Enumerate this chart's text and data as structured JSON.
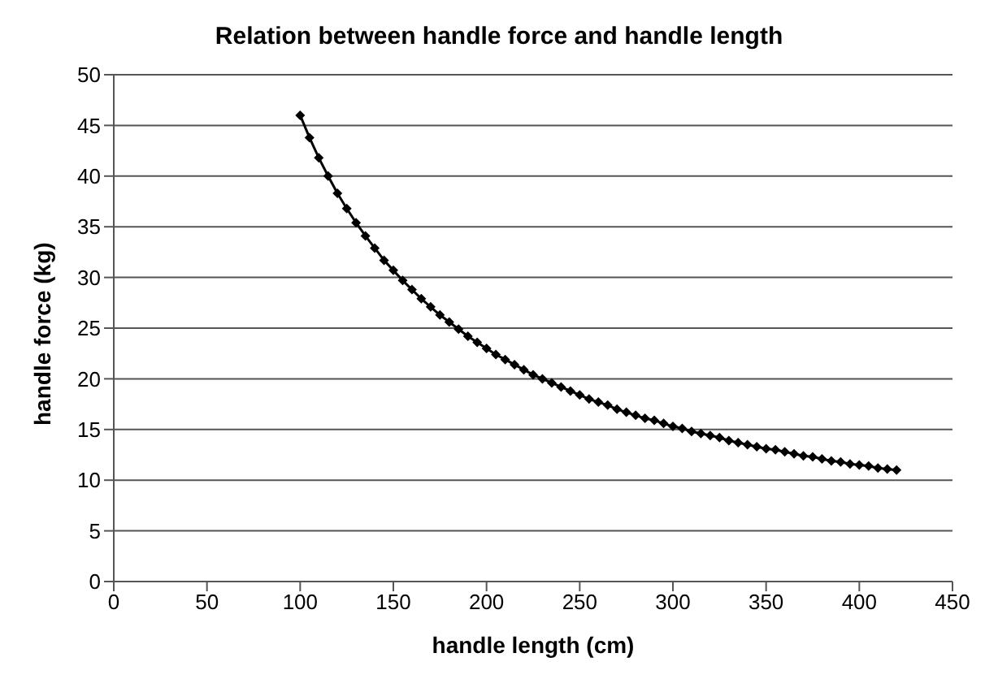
{
  "chart_data": {
    "type": "line",
    "title": "Relation between handle force and handle length",
    "xlabel": "handle length (cm)",
    "ylabel": "handle force (kg)",
    "x": [
      100,
      105,
      110,
      115,
      120,
      125,
      130,
      135,
      140,
      145,
      150,
      155,
      160,
      165,
      170,
      175,
      180,
      185,
      190,
      195,
      200,
      205,
      210,
      215,
      220,
      225,
      230,
      235,
      240,
      245,
      250,
      255,
      260,
      265,
      270,
      275,
      280,
      285,
      290,
      295,
      300,
      305,
      310,
      315,
      320,
      325,
      330,
      335,
      340,
      345,
      350,
      355,
      360,
      365,
      370,
      375,
      380,
      385,
      390,
      395,
      400,
      405,
      410,
      415,
      420
    ],
    "series": [
      {
        "color": "#000000",
        "values": [
          46.0,
          43.8,
          41.8,
          40.0,
          38.3,
          36.8,
          35.4,
          34.1,
          32.9,
          31.7,
          30.7,
          29.7,
          28.8,
          27.9,
          27.1,
          26.3,
          25.6,
          24.9,
          24.2,
          23.6,
          23.0,
          22.4,
          21.9,
          21.4,
          20.9,
          20.4,
          20.0,
          19.6,
          19.2,
          18.8,
          18.4,
          18.0,
          17.7,
          17.4,
          17.0,
          16.7,
          16.4,
          16.1,
          15.9,
          15.6,
          15.3,
          15.1,
          14.8,
          14.6,
          14.4,
          14.2,
          13.9,
          13.7,
          13.5,
          13.3,
          13.1,
          13.0,
          12.8,
          12.6,
          12.4,
          12.3,
          12.1,
          11.9,
          11.8,
          11.6,
          11.5,
          11.4,
          11.2,
          11.1,
          11.0
        ]
      }
    ],
    "xlim": [
      0,
      450
    ],
    "xticks": [
      0,
      50,
      100,
      150,
      200,
      250,
      300,
      350,
      400,
      450
    ],
    "ylim": [
      0,
      50
    ],
    "yticks": [
      0,
      5,
      10,
      15,
      20,
      25,
      30,
      35,
      40,
      45,
      50
    ],
    "grid": "y",
    "legend": false,
    "marker": "diamond",
    "line_style": "solid"
  }
}
